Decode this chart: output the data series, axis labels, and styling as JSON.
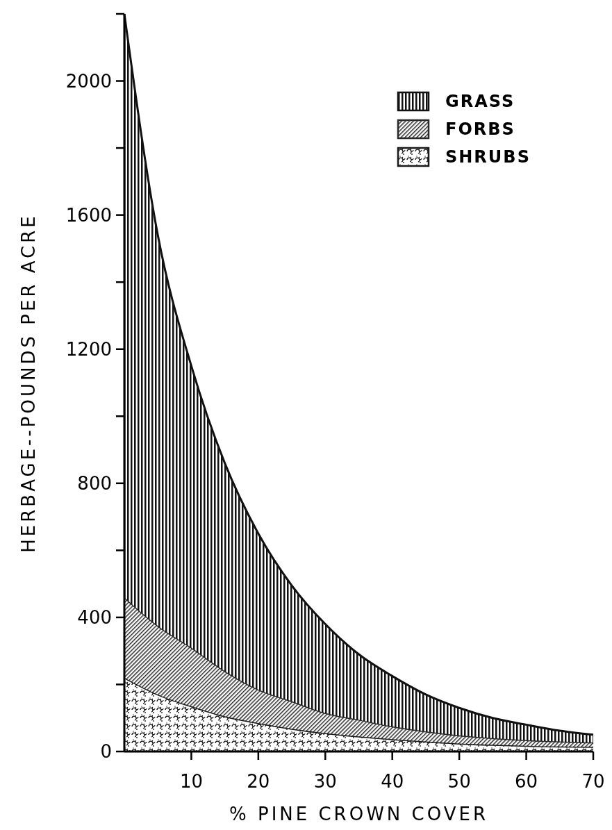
{
  "chart_data": {
    "type": "area",
    "stacked": true,
    "xlabel": "% PINE CROWN COVER",
    "ylabel": "HERBAGE--POUNDS PER ACRE",
    "x": [
      0,
      5,
      10,
      15,
      20,
      25,
      30,
      35,
      40,
      45,
      50,
      55,
      60,
      65,
      70
    ],
    "series": [
      {
        "name": "SHRUBS",
        "color": "#1a1a1a",
        "values": [
          220,
          170,
          135,
          105,
          85,
          68,
          55,
          45,
          37,
          30,
          24,
          20,
          17,
          15,
          14
        ]
      },
      {
        "name": "FORBS",
        "color": "#2a2a2a",
        "values": [
          240,
          205,
          175,
          135,
          100,
          82,
          60,
          50,
          38,
          30,
          24,
          20,
          17,
          15,
          13
        ]
      },
      {
        "name": "GRASS",
        "color": "#111111",
        "values": [
          1740,
          1165,
          840,
          620,
          465,
          345,
          265,
          195,
          150,
          110,
          82,
          60,
          46,
          32,
          23
        ]
      }
    ],
    "xlim": [
      0,
      70
    ],
    "xticks": [
      10,
      20,
      30,
      40,
      50,
      60,
      70
    ],
    "ylim": [
      0,
      2200
    ],
    "yticks": [
      0,
      {
        "value": 200,
        "label": null
      },
      400,
      {
        "value": 600,
        "label": null
      },
      800,
      {
        "value": 1000,
        "label": null
      },
      1200,
      {
        "value": 1400,
        "label": null
      },
      1600,
      {
        "value": 1800,
        "label": null
      },
      2000,
      {
        "value": 2200,
        "label": null
      }
    ],
    "legend": "top right",
    "grid": false
  }
}
